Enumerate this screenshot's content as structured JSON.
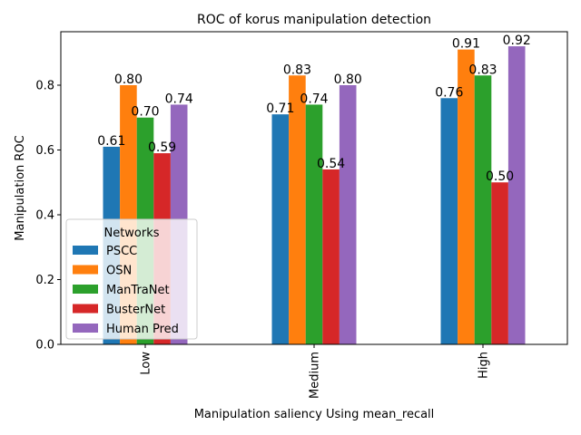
{
  "chart_data": {
    "type": "bar",
    "title": "ROC of korus manipulation detection",
    "xlabel": "Manipulation saliency Using mean_recall",
    "ylabel": "Manipulation ROC",
    "categories": [
      "Low",
      "Medium",
      "High"
    ],
    "ylim": [
      0,
      0.965
    ],
    "yticks": [
      "0.0",
      "0.2",
      "0.4",
      "0.6",
      "0.8"
    ],
    "grid": false,
    "legend": {
      "title": "Networks",
      "placement": "lower-left"
    },
    "series": [
      {
        "name": "PSCC",
        "color": "#1f77b4",
        "values": [
          0.61,
          0.71,
          0.76
        ],
        "labels": [
          "0.61",
          "0.71",
          "0.76"
        ]
      },
      {
        "name": "OSN",
        "color": "#ff7f0e",
        "values": [
          0.8,
          0.83,
          0.91
        ],
        "labels": [
          "0.80",
          "0.83",
          "0.91"
        ]
      },
      {
        "name": "ManTraNet",
        "color": "#2ca02c",
        "values": [
          0.7,
          0.74,
          0.83
        ],
        "labels": [
          "0.70",
          "0.74",
          "0.83"
        ]
      },
      {
        "name": "BusterNet",
        "color": "#d62728",
        "values": [
          0.59,
          0.54,
          0.5
        ],
        "labels": [
          "0.59",
          "0.54",
          "0.50"
        ]
      },
      {
        "name": "Human Pred",
        "color": "#9467bd",
        "values": [
          0.74,
          0.8,
          0.92
        ],
        "labels": [
          "0.74",
          "0.80",
          "0.92"
        ]
      }
    ]
  }
}
